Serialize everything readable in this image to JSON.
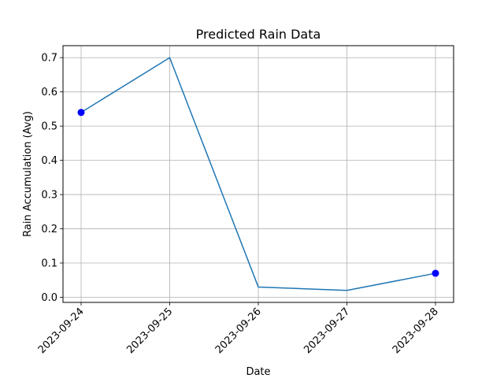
{
  "chart_data": {
    "type": "line",
    "title": "Predicted Rain Data",
    "xlabel": "Date",
    "ylabel": "Rain Accumulation (Avg)",
    "categories": [
      "2023-09-24",
      "2023-09-25",
      "2023-09-26",
      "2023-09-27",
      "2023-09-28"
    ],
    "series": [
      {
        "values": [
          0.54,
          0.7,
          0.03,
          0.02,
          0.07
        ],
        "color": "#1f77b4"
      }
    ],
    "highlighted_points": [
      {
        "x": "2023-09-24",
        "y": 0.54,
        "color": "#0000ff"
      },
      {
        "x": "2023-09-28",
        "y": 0.07,
        "color": "#0000ff"
      }
    ],
    "ylim": [
      -0.015,
      0.735
    ],
    "yticks": [
      "0.0",
      "0.1",
      "0.2",
      "0.3",
      "0.4",
      "0.5",
      "0.6",
      "0.7"
    ],
    "grid": true
  }
}
